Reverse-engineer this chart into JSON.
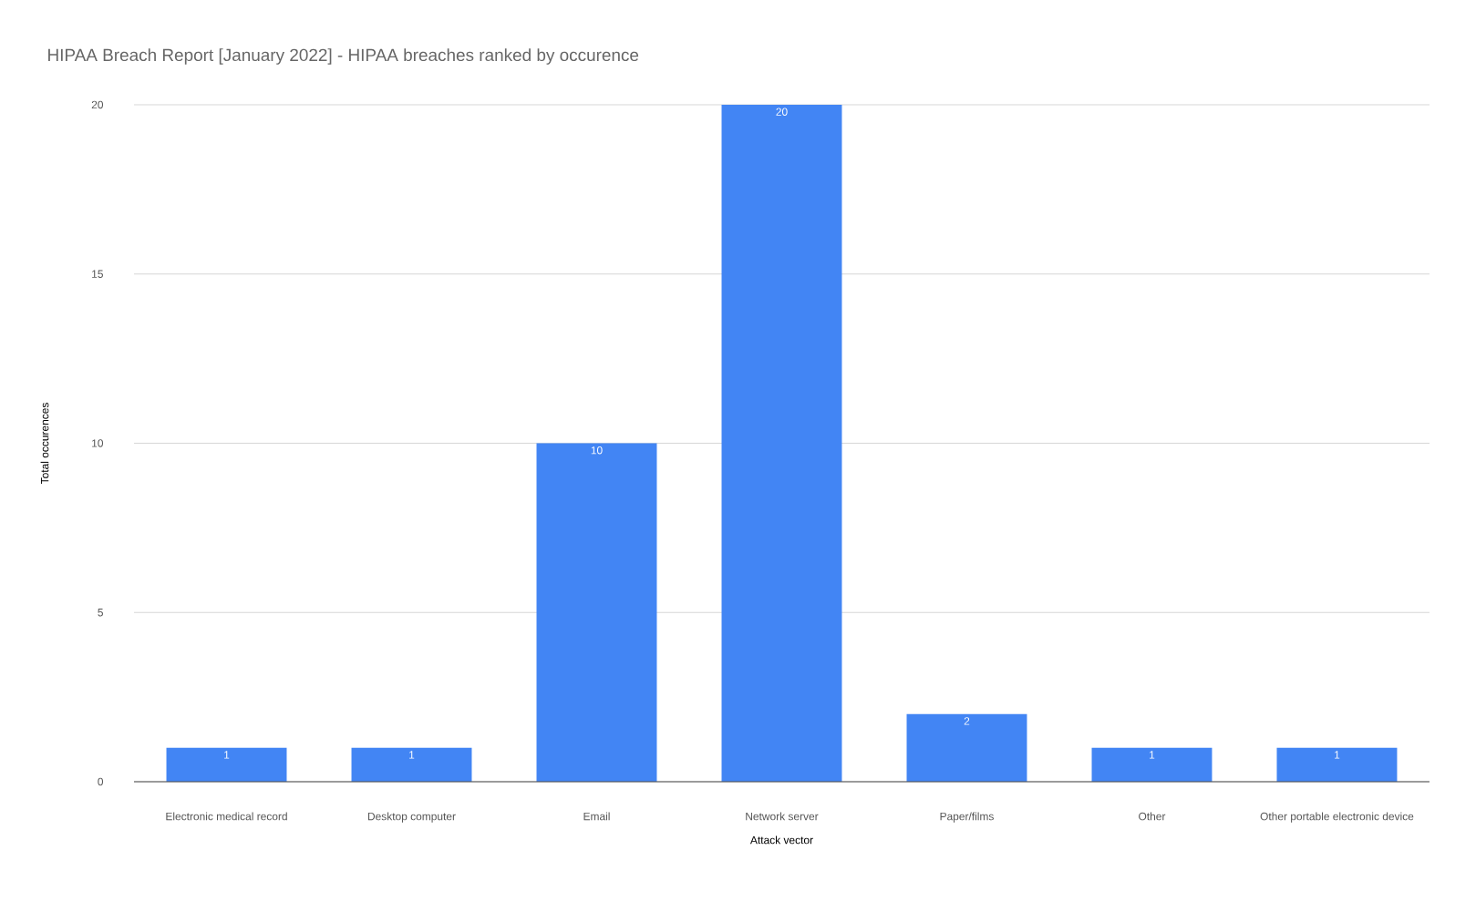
{
  "chart_data": {
    "type": "bar",
    "title": "HIPAA Breach Report [January 2022] - HIPAA breaches ranked by occurence",
    "xlabel": "Attack vector",
    "ylabel": "Total occurences",
    "categories": [
      "Electronic medical record",
      "Desktop computer",
      "Email",
      "Network server",
      "Paper/films",
      "Other",
      "Other portable electronic device"
    ],
    "values": [
      1,
      1,
      10,
      20,
      2,
      1,
      1
    ],
    "color": "#4285f4",
    "ylim": [
      0,
      20
    ],
    "yticks": [
      0,
      5,
      10,
      15,
      20
    ],
    "grid": "y",
    "data_labels": true
  }
}
